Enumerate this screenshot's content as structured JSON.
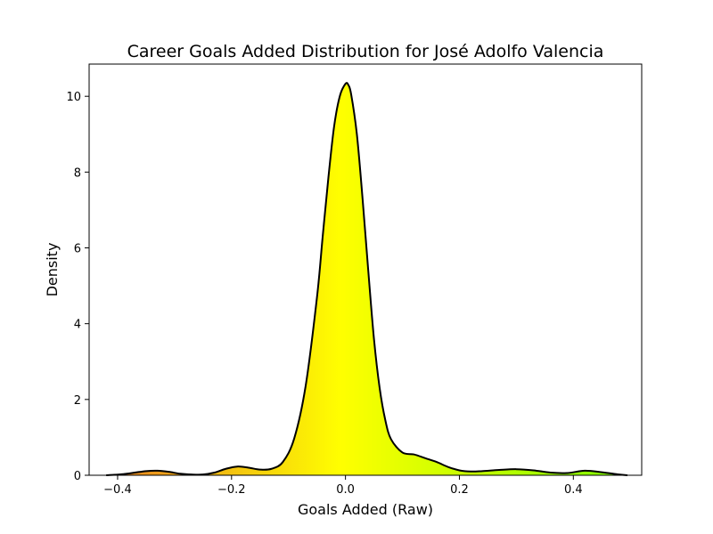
{
  "chart_data": {
    "type": "area",
    "title": "Career Goals Added Distribution for José Adolfo Valencia",
    "xlabel": "Goals Added (Raw)",
    "ylabel": "Density",
    "xlim": [
      -0.45,
      0.52
    ],
    "ylim": [
      0,
      10.85
    ],
    "x_ticks": [
      -0.4,
      -0.2,
      0.0,
      0.2,
      0.4
    ],
    "x_tick_labels": [
      "−0.4",
      "−0.2",
      "0.0",
      "0.2",
      "0.4"
    ],
    "y_ticks": [
      0,
      2,
      4,
      6,
      8,
      10
    ],
    "y_tick_labels": [
      "0",
      "2",
      "4",
      "6",
      "8",
      "10"
    ],
    "grid": false,
    "line_color": "#000000",
    "fill_colormap": [
      "#e67e22",
      "#ffff00",
      "#7fff00"
    ],
    "series": [
      {
        "x": [
          -0.42,
          -0.39,
          -0.37,
          -0.35,
          -0.33,
          -0.31,
          -0.29,
          -0.27,
          -0.25,
          -0.23,
          -0.21,
          -0.19,
          -0.17,
          -0.15,
          -0.13,
          -0.11,
          -0.09,
          -0.07,
          -0.05,
          -0.04,
          -0.03,
          -0.02,
          -0.01,
          0.0,
          0.005,
          0.01,
          0.02,
          0.03,
          0.04,
          0.05,
          0.06,
          0.07,
          0.08,
          0.1,
          0.12,
          0.14,
          0.16,
          0.18,
          0.2,
          0.22,
          0.24,
          0.27,
          0.3,
          0.33,
          0.36,
          0.39,
          0.42,
          0.45,
          0.48,
          0.495
        ],
        "y": [
          0.0,
          0.03,
          0.07,
          0.11,
          0.12,
          0.09,
          0.04,
          0.02,
          0.02,
          0.07,
          0.17,
          0.23,
          0.2,
          0.15,
          0.17,
          0.35,
          0.97,
          2.35,
          4.7,
          6.3,
          7.85,
          9.2,
          10.0,
          10.33,
          10.3,
          10.05,
          9.0,
          7.3,
          5.4,
          3.6,
          2.3,
          1.45,
          0.95,
          0.6,
          0.55,
          0.45,
          0.35,
          0.22,
          0.13,
          0.1,
          0.11,
          0.14,
          0.16,
          0.13,
          0.07,
          0.06,
          0.12,
          0.08,
          0.02,
          0.0
        ]
      }
    ]
  }
}
